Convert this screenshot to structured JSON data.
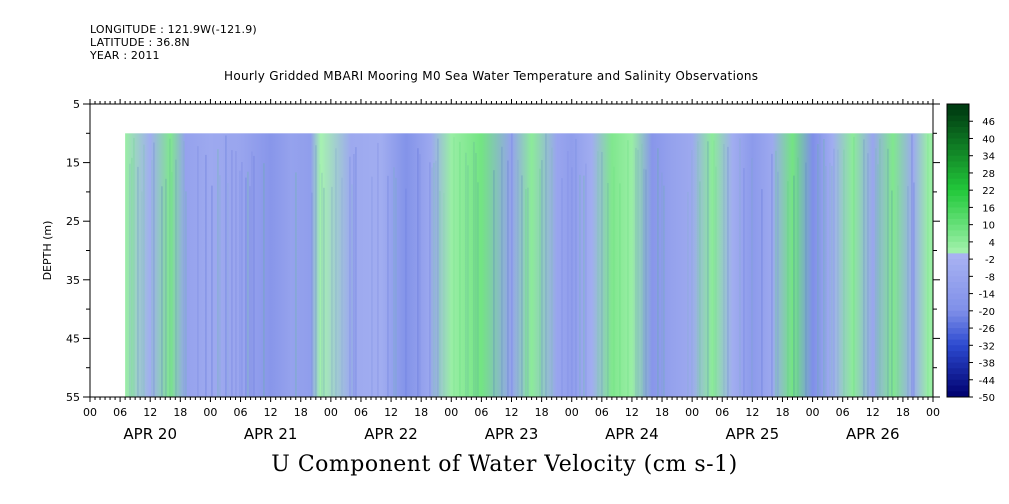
{
  "header": {
    "longitude": "LONGITUDE : 121.9W(-121.9)",
    "latitude": "LATITUDE : 36.8N",
    "year": "YEAR : 2011"
  },
  "colors": {
    "negative_strong": "#00006e",
    "negative_mid": "#2c4ad0",
    "negative_light": "#aab4f2",
    "positive_light": "#a6f2b0",
    "positive_mid": "#22c83a",
    "positive_strong": "#003d12"
  },
  "chart_data": {
    "type": "heatmap",
    "title": "Hourly Gridded MBARI Mooring M0 Sea Water Temperature and Salinity Observations",
    "xlabel": "U Component of Water Velocity (cm s-1)",
    "ylabel": "DEPTH (m)",
    "ylim": [
      55,
      5
    ],
    "y_ticks": [
      5,
      15,
      25,
      35,
      45,
      55
    ],
    "x_hour_ticks": [
      "00",
      "06",
      "12",
      "18",
      "00",
      "06",
      "12",
      "18",
      "00",
      "06",
      "12",
      "18",
      "00",
      "06",
      "12",
      "18",
      "00",
      "06",
      "12",
      "18",
      "00",
      "06",
      "12",
      "18",
      "00",
      "06",
      "12",
      "18",
      "00"
    ],
    "x_day_labels": [
      "APR 20",
      "APR 21",
      "APR 22",
      "APR 23",
      "APR 24",
      "APR 25",
      "APR 26"
    ],
    "data_depth_range": [
      10,
      55
    ],
    "data_time_start_hour": 7,
    "data_time_end_hour": 168,
    "time_samples": [
      7,
      12,
      16,
      19,
      24,
      30,
      36,
      40,
      44,
      46,
      52,
      58,
      63,
      68,
      72,
      78,
      84,
      88,
      93,
      96,
      100,
      104,
      108,
      112,
      116,
      120,
      124,
      128,
      132,
      136,
      140,
      144,
      148,
      152,
      156,
      160,
      164,
      167
    ],
    "u_mean_by_time": [
      2,
      -4,
      6,
      -10,
      -6,
      -8,
      -16,
      -10,
      -12,
      0,
      -6,
      -4,
      -18,
      -6,
      2,
      8,
      -10,
      4,
      -8,
      -12,
      -4,
      6,
      2,
      -16,
      -10,
      -6,
      4,
      -4,
      -14,
      -6,
      8,
      -20,
      -4,
      4,
      -8,
      6,
      -6,
      2
    ],
    "colorbar_labels": [
      "46",
      "40",
      "34",
      "28",
      "22",
      "16",
      "10",
      "4",
      "-2",
      "-8",
      "-14",
      "-20",
      "-26",
      "-32",
      "-38",
      "-44",
      "-50"
    ],
    "colorbar_range": [
      -50,
      52
    ]
  }
}
